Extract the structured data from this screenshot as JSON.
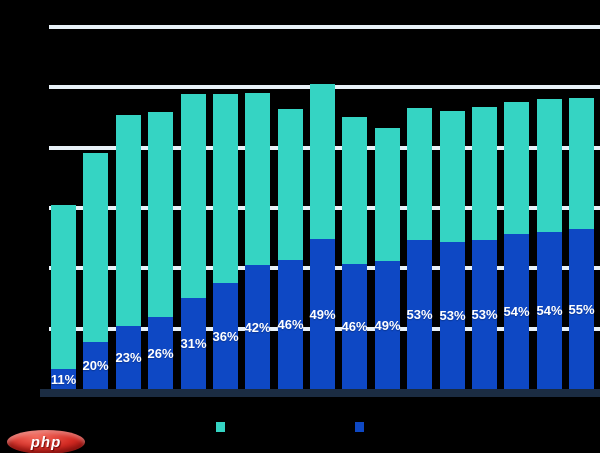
{
  "colors": {
    "background": "#000000",
    "teal": "#35D4C3",
    "blue": "#0E48C4",
    "gridline": "#E8F1F8",
    "axis_band": "#1B2C42",
    "label_text": "#FFFFFF",
    "watermark_red": "#D42A22",
    "watermark_red_dark": "#A30F0D"
  },
  "chart_data": {
    "type": "bar",
    "subtype": "stacked",
    "title": "",
    "xlabel": "",
    "ylabel": "",
    "legend_position": "bottom",
    "grid": true,
    "axis": {
      "ymin_units": 0,
      "ymax_units": 6,
      "gridline_units": [
        1,
        2,
        3,
        4,
        5,
        6
      ]
    },
    "series": [
      {
        "name": "teal-series",
        "color": "#35D4C3"
      },
      {
        "name": "blue-series",
        "color": "#0E48C4"
      }
    ],
    "bars": [
      {
        "blue_label": "11%",
        "blue_pct": 11,
        "total_units": 3.05
      },
      {
        "blue_label": "20%",
        "blue_pct": 20,
        "total_units": 3.91
      },
      {
        "blue_label": "23%",
        "blue_pct": 23,
        "total_units": 4.54
      },
      {
        "blue_label": "26%",
        "blue_pct": 26,
        "total_units": 4.59
      },
      {
        "blue_label": "31%",
        "blue_pct": 31,
        "total_units": 4.89
      },
      {
        "blue_label": "36%",
        "blue_pct": 36,
        "total_units": 4.89
      },
      {
        "blue_label": "42%",
        "blue_pct": 42,
        "total_units": 4.91
      },
      {
        "blue_label": "46%",
        "blue_pct": 46,
        "total_units": 4.64
      },
      {
        "blue_label": "49%",
        "blue_pct": 49,
        "total_units": 5.06
      },
      {
        "blue_label": "46%",
        "blue_pct": 46,
        "total_units": 4.51
      },
      {
        "blue_label": "49%",
        "blue_pct": 49,
        "total_units": 4.33
      },
      {
        "blue_label": "53%",
        "blue_pct": 53,
        "total_units": 4.66
      },
      {
        "blue_label": "53%",
        "blue_pct": 53,
        "total_units": 4.61
      },
      {
        "blue_label": "53%",
        "blue_pct": 53,
        "total_units": 4.67
      },
      {
        "blue_label": "54%",
        "blue_pct": 54,
        "total_units": 4.76
      },
      {
        "blue_label": "54%",
        "blue_pct": 54,
        "total_units": 4.81
      },
      {
        "blue_label": "55%",
        "blue_pct": 55,
        "total_units": 4.82
      }
    ]
  },
  "legend": {
    "teal_label": "",
    "blue_label": ""
  },
  "watermark": {
    "text": "php"
  }
}
